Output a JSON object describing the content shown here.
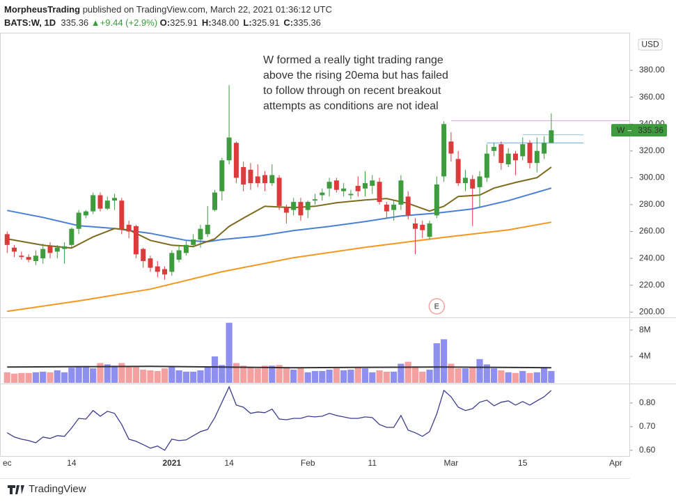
{
  "header": {
    "author": "MorpheusTrading",
    "published": "published on TradingView.com, March 22, 2021 01:36:12 UTC",
    "symbol": "BATS:W, 1D",
    "last": "335.36",
    "change": "+9.44 (+2.9%)",
    "ohlc": [
      {
        "label": "O:",
        "value": "325.91"
      },
      {
        "label": "H:",
        "value": "348.00"
      },
      {
        "label": "L:",
        "value": "325.91"
      },
      {
        "label": "C:",
        "value": "335.36"
      }
    ]
  },
  "footer": {
    "brand": "TradingView"
  },
  "chart_data": [
    {
      "type": "candlestick",
      "currency": "USD",
      "xlim": [
        -1,
        87
      ],
      "ylim": [
        196,
        407.5
      ],
      "up_color": "#3e9b3e",
      "down_color": "#dd3b3b",
      "yticks": [
        {
          "value": 200,
          "label": "200.00"
        },
        {
          "value": 220,
          "label": "220.00"
        },
        {
          "value": 240,
          "label": "240.00"
        },
        {
          "value": 260,
          "label": "260.00"
        },
        {
          "value": 280,
          "label": "280.00"
        },
        {
          "value": 300,
          "label": "300.00"
        },
        {
          "value": 320,
          "label": "320.00"
        },
        {
          "value": 340,
          "label": "340.00"
        },
        {
          "value": 360,
          "label": "360.00"
        },
        {
          "value": 380,
          "label": "380.00"
        }
      ],
      "open": [
        258,
        248,
        242,
        241,
        238,
        240,
        249,
        245,
        247,
        250,
        262,
        272,
        275,
        287,
        277,
        283,
        283,
        265,
        264,
        247,
        240,
        234,
        232,
        230,
        239,
        244,
        250,
        254,
        258,
        276,
        290,
        313,
        326,
        308,
        306,
        301,
        302,
        296,
        300,
        278,
        276,
        282,
        276,
        283,
        287,
        292,
        298,
        290,
        287,
        294,
        292,
        294,
        297,
        280,
        276,
        280,
        286,
        266,
        265,
        256,
        272,
        301,
        327,
        314,
        296,
        299,
        293,
        300,
        320,
        325,
        310,
        318,
        316,
        326,
        311,
        318,
        325.91
      ],
      "high": [
        260,
        250,
        245,
        243,
        246,
        251,
        252,
        250,
        252,
        263,
        276,
        276,
        289,
        289,
        286,
        288,
        285,
        268,
        265,
        248,
        242,
        238,
        234,
        246,
        250,
        253,
        258,
        265,
        279,
        291,
        315,
        369,
        327,
        312,
        311,
        310,
        305,
        310,
        302,
        280,
        285,
        285,
        283,
        288,
        292,
        300,
        300,
        296,
        291,
        301,
        305,
        302,
        300,
        282,
        283,
        302,
        290,
        270,
        268,
        268,
        301,
        342,
        334,
        320,
        306,
        302,
        305,
        325,
        326,
        327,
        322,
        320,
        330,
        328,
        330,
        331,
        348
      ],
      "low": [
        244,
        241,
        239,
        237,
        235,
        236,
        240,
        240,
        236,
        248,
        258,
        270,
        273,
        275,
        276,
        276,
        258,
        255,
        240,
        233,
        230,
        226,
        224,
        227,
        237,
        242,
        248,
        248,
        256,
        275,
        283,
        310,
        296,
        290,
        291,
        293,
        290,
        294,
        276,
        266,
        272,
        268,
        270,
        280,
        283,
        286,
        289,
        286,
        284,
        286,
        286,
        288,
        280,
        270,
        268,
        276,
        269,
        243,
        255,
        254,
        270,
        297,
        312,
        294,
        290,
        264,
        278,
        297,
        316,
        306,
        308,
        302,
        313,
        307,
        304,
        314,
        325.91
      ],
      "close": [
        250,
        245,
        241,
        239,
        242,
        247,
        244,
        248,
        249,
        262,
        274,
        275,
        287,
        277,
        283,
        285,
        262,
        260,
        243,
        238,
        233,
        230,
        228,
        244,
        246,
        250,
        254,
        262,
        265,
        289,
        313,
        330,
        300,
        295,
        296,
        296,
        296,
        302,
        279,
        274,
        282,
        272,
        282,
        284,
        289,
        297,
        291,
        292,
        288,
        290,
        296,
        298,
        282,
        275,
        280,
        298,
        272,
        262,
        261,
        266,
        295,
        340,
        318,
        296,
        300,
        292,
        301,
        318,
        323,
        311,
        318,
        313,
        325,
        311,
        320,
        326,
        335.36
      ],
      "lines": [
        {
          "color": "#f5961e",
          "x": [
            0,
            10,
            20,
            30,
            40,
            50,
            60,
            70,
            76
          ],
          "values": [
            200.5,
            208.3,
            217.1,
            230,
            240.5,
            248.2,
            255,
            261.2,
            266.9
          ]
        },
        {
          "color": "#4a7fd6",
          "x": [
            0,
            5,
            10,
            15,
            20,
            25,
            28,
            30,
            35,
            40,
            45,
            50,
            55,
            60,
            65,
            70,
            76
          ],
          "values": [
            275.7,
            270.5,
            264.3,
            262.2,
            258.6,
            253.4,
            252.4,
            254,
            256.5,
            260.7,
            263.8,
            267.4,
            271.6,
            273.7,
            276.8,
            283,
            292.3
          ]
        },
        {
          "color": "#7d6a1c",
          "x": [
            0,
            5,
            9,
            12,
            15,
            17,
            20,
            23,
            26,
            29,
            31,
            33,
            36,
            40,
            43,
            46,
            50,
            53,
            56,
            59,
            61,
            63,
            66,
            68,
            71,
            74,
            76
          ],
          "values": [
            254.5,
            249.8,
            247.7,
            256,
            262.2,
            261.2,
            253.4,
            249.8,
            248.8,
            254.5,
            263.8,
            270,
            278.8,
            277.8,
            278.8,
            281.4,
            283.5,
            284.5,
            280.9,
            275.2,
            278.8,
            286.1,
            287.1,
            292.3,
            296.5,
            300.1,
            307.9
          ]
        }
      ],
      "levels": [
        {
          "value": 342.5,
          "from": 62,
          "to": 87,
          "color": "#d9a6e8"
        },
        {
          "value": 332,
          "from": 72,
          "to": 80.5,
          "color": "#8cc4f0"
        },
        {
          "value": 326,
          "from": 67,
          "to": 80.5,
          "color": "#5aaeea"
        }
      ],
      "annotation": [
        "W formed a really tight trading range",
        "above the rising 20ema but has failed",
        "to follow through on recent breakout",
        "attempts as conditions are not ideal"
      ],
      "earnings": {
        "label": "E",
        "x": 60
      },
      "last_label": {
        "symbol": "W",
        "value": 335.36
      }
    },
    {
      "type": "bar",
      "ylim": [
        0,
        9800000
      ],
      "up_color": "#8f8ff0",
      "down_color": "#f5a0a0",
      "yticks": [
        {
          "value": 4000000,
          "label": "4M"
        },
        {
          "value": 8000000,
          "label": "8M"
        }
      ],
      "values": [
        1600000,
        1400000,
        1500000,
        1500000,
        1600000,
        1700000,
        1600000,
        1900000,
        1600000,
        2300000,
        2400000,
        2400000,
        2200000,
        3000000,
        2800000,
        2600000,
        3000000,
        2400000,
        2400000,
        2000000,
        1900000,
        1800000,
        2200000,
        2400000,
        1900000,
        1700000,
        1700000,
        1900000,
        2500000,
        4000000,
        2700000,
        9100000,
        3000000,
        2600000,
        2400000,
        2200000,
        2600000,
        2600000,
        2700000,
        2400000,
        2000000,
        2300000,
        1600000,
        1800000,
        1800000,
        2000000,
        2200000,
        1900000,
        2000000,
        2400000,
        2200000,
        1600000,
        1900000,
        1700000,
        1700000,
        2900000,
        3200000,
        2500000,
        1700000,
        2000000,
        6000000,
        6600000,
        2900000,
        2200000,
        2200000,
        2400000,
        3600000,
        2800000,
        2200000,
        1900000,
        1600000,
        1500000,
        1800000,
        1500000,
        1600000,
        2300000,
        1800000
      ],
      "line": {
        "color": "#333333",
        "x": [
          0,
          20,
          40,
          60,
          76
        ],
        "values": [
          2400000,
          2500000,
          2300000,
          2400000,
          2300000
        ]
      }
    },
    {
      "type": "line",
      "color": "#3b3b8f",
      "ylim": [
        0.576,
        0.879
      ],
      "yticks": [
        {
          "value": 0.6,
          "label": "0.60"
        },
        {
          "value": 0.7,
          "label": "0.70"
        },
        {
          "value": 0.8,
          "label": "0.80"
        }
      ],
      "values": [
        0.674,
        0.656,
        0.647,
        0.641,
        0.632,
        0.656,
        0.65,
        0.662,
        0.659,
        0.694,
        0.735,
        0.732,
        0.768,
        0.744,
        0.765,
        0.756,
        0.709,
        0.647,
        0.638,
        0.624,
        0.609,
        0.618,
        0.6,
        0.647,
        0.641,
        0.644,
        0.662,
        0.679,
        0.688,
        0.738,
        0.803,
        0.868,
        0.791,
        0.782,
        0.756,
        0.762,
        0.759,
        0.774,
        0.732,
        0.729,
        0.735,
        0.735,
        0.744,
        0.741,
        0.744,
        0.756,
        0.747,
        0.741,
        0.735,
        0.735,
        0.741,
        0.738,
        0.709,
        0.697,
        0.697,
        0.747,
        0.685,
        0.674,
        0.659,
        0.679,
        0.753,
        0.853,
        0.826,
        0.782,
        0.768,
        0.776,
        0.803,
        0.812,
        0.788,
        0.803,
        0.809,
        0.791,
        0.806,
        0.791,
        0.809,
        0.826,
        0.853
      ],
      "xticks": [
        {
          "value": 0,
          "label": "ec"
        },
        {
          "value": 9,
          "label": "14"
        },
        {
          "value": 23,
          "label": "2021"
        },
        {
          "value": 31,
          "label": "14"
        },
        {
          "value": 42,
          "label": "Feb"
        },
        {
          "value": 51,
          "label": "11"
        },
        {
          "value": 62,
          "label": "Mar"
        },
        {
          "value": 72,
          "label": "15"
        },
        {
          "value": 85,
          "label": "Apr"
        }
      ]
    }
  ]
}
